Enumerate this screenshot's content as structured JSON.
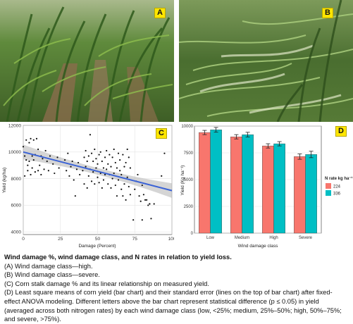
{
  "figure": {
    "panels": {
      "a": {
        "tag": "A"
      },
      "b": {
        "tag": "B"
      },
      "c": {
        "tag": "C"
      },
      "d": {
        "tag": "D"
      }
    },
    "caption": {
      "title": "Wind damage %, wind damage class, and N rates in relation to yield loss.",
      "lines": [
        "(A) Wind damage class—high.",
        "(B) Wind damage class—severe.",
        "(C) Corn stalk damage % and its linear relationship on measured yield.",
        "(D) Least square means of corn yield (bar chart) and their standard error (lines on the top of bar chart) after fixed-",
        "effect ANOVA modeling. Different letters above the bar chart represent statistical difference (p ≤ 0.05) in yield",
        "(averaged across both nitrogen rates) by each wind damage class (low, <25%; medium, 25%–50%; high, 50%–75%;",
        "and severe, >75%)."
      ]
    }
  },
  "chart_data": [
    {
      "type": "scatter",
      "xlabel": "Damage (Percent)",
      "ylabel": "Yield (kg/ha)",
      "xlim": [
        0,
        100
      ],
      "ylim": [
        3800,
        12000
      ],
      "xticks": [
        0,
        25,
        50,
        75,
        100
      ],
      "yticks": [
        4000,
        6000,
        8000,
        10000,
        12000
      ],
      "grid": true,
      "fit": {
        "x": [
          0,
          100
        ],
        "y": [
          10000,
          7100
        ],
        "ci_band": true
      },
      "points": [
        [
          0,
          10400
        ],
        [
          1,
          9700
        ],
        [
          1,
          8200
        ],
        [
          2,
          9400
        ],
        [
          2,
          10900
        ],
        [
          3,
          9000
        ],
        [
          3,
          8600
        ],
        [
          4,
          9300
        ],
        [
          4,
          10700
        ],
        [
          5,
          8300
        ],
        [
          5,
          11000
        ],
        [
          6,
          9700
        ],
        [
          6,
          8800
        ],
        [
          7,
          10900
        ],
        [
          7,
          9400
        ],
        [
          8,
          8500
        ],
        [
          8,
          9800
        ],
        [
          9,
          11000
        ],
        [
          10,
          8600
        ],
        [
          10,
          10200
        ],
        [
          11,
          9000
        ],
        [
          12,
          9700
        ],
        [
          12,
          8300
        ],
        [
          13,
          9500
        ],
        [
          14,
          8700
        ],
        [
          15,
          10100
        ],
        [
          16,
          9300
        ],
        [
          17,
          8600
        ],
        [
          18,
          9700
        ],
        [
          20,
          9100
        ],
        [
          21,
          8400
        ],
        [
          23,
          9600
        ],
        [
          24,
          8800
        ],
        [
          28,
          9400
        ],
        [
          29,
          8600
        ],
        [
          30,
          9900
        ],
        [
          31,
          8200
        ],
        [
          32,
          8900
        ],
        [
          33,
          9300
        ],
        [
          34,
          7900
        ],
        [
          35,
          6700
        ],
        [
          36,
          8700
        ],
        [
          37,
          9200
        ],
        [
          38,
          8300
        ],
        [
          40,
          8600
        ],
        [
          41,
          9600
        ],
        [
          41,
          7600
        ],
        [
          42,
          8900
        ],
        [
          42,
          10100
        ],
        [
          43,
          7300
        ],
        [
          43,
          9300
        ],
        [
          44,
          8200
        ],
        [
          44,
          9700
        ],
        [
          45,
          8700
        ],
        [
          45,
          11300
        ],
        [
          46,
          7800
        ],
        [
          46,
          9900
        ],
        [
          47,
          8500
        ],
        [
          47,
          9300
        ],
        [
          48,
          7600
        ],
        [
          48,
          10200
        ],
        [
          49,
          8800
        ],
        [
          49,
          9500
        ],
        [
          50,
          8100
        ],
        [
          50,
          9100
        ],
        [
          51,
          7700
        ],
        [
          51,
          9800
        ],
        [
          52,
          8400
        ],
        [
          52,
          10000
        ],
        [
          53,
          7300
        ],
        [
          53,
          9300
        ],
        [
          54,
          8800
        ],
        [
          54,
          7900
        ],
        [
          55,
          9600
        ],
        [
          55,
          8300
        ],
        [
          56,
          8700
        ],
        [
          56,
          10100
        ],
        [
          57,
          7600
        ],
        [
          57,
          9100
        ],
        [
          58,
          8300
        ],
        [
          58,
          9800
        ],
        [
          59,
          7300
        ],
        [
          59,
          8900
        ],
        [
          60,
          9600
        ],
        [
          60,
          8000
        ],
        [
          61,
          8400
        ],
        [
          61,
          10200
        ],
        [
          62,
          7500
        ],
        [
          62,
          9200
        ],
        [
          63,
          6700
        ],
        [
          63,
          8800
        ],
        [
          64,
          9900
        ],
        [
          64,
          7900
        ],
        [
          65,
          8600
        ],
        [
          65,
          9400
        ],
        [
          66,
          7200
        ],
        [
          66,
          8300
        ],
        [
          67,
          9800
        ],
        [
          67,
          6700
        ],
        [
          68,
          8900
        ],
        [
          68,
          7600
        ],
        [
          69,
          9200
        ],
        [
          69,
          6400
        ],
        [
          70,
          8100
        ],
        [
          70,
          10200
        ],
        [
          71,
          7400
        ],
        [
          71,
          9600
        ],
        [
          72,
          6800
        ],
        [
          72,
          8800
        ],
        [
          74,
          4900
        ],
        [
          75,
          7200
        ],
        [
          76,
          7800
        ],
        [
          77,
          8300
        ],
        [
          78,
          6700
        ],
        [
          79,
          6300
        ],
        [
          80,
          4900
        ],
        [
          80,
          7500
        ],
        [
          81,
          6800
        ],
        [
          82,
          6400
        ],
        [
          83,
          6400
        ],
        [
          84,
          6000
        ],
        [
          85,
          6100
        ],
        [
          85,
          6100
        ],
        [
          86,
          5000
        ],
        [
          88,
          6100
        ],
        [
          93,
          8200
        ],
        [
          95,
          9900
        ]
      ]
    },
    {
      "type": "bar",
      "xlabel": "Wind damage class",
      "ylabel": "Yield (Kg ha⁻¹)",
      "categories": [
        "Low",
        "Medium",
        "High",
        "Severe"
      ],
      "ylim": [
        0,
        10000
      ],
      "yticks": [
        0,
        2500,
        5000,
        7500,
        10000
      ],
      "legend": {
        "title": "N rate kg ha⁻¹",
        "position": "right"
      },
      "series": [
        {
          "name": "224",
          "color": "#f8766d",
          "values": [
            9400,
            9000,
            8150,
            7150
          ],
          "errors": [
            200,
            200,
            200,
            250
          ]
        },
        {
          "name": "336",
          "color": "#00bfc4",
          "values": [
            9650,
            9200,
            8350,
            7350
          ],
          "errors": [
            220,
            220,
            200,
            300
          ]
        }
      ]
    }
  ]
}
